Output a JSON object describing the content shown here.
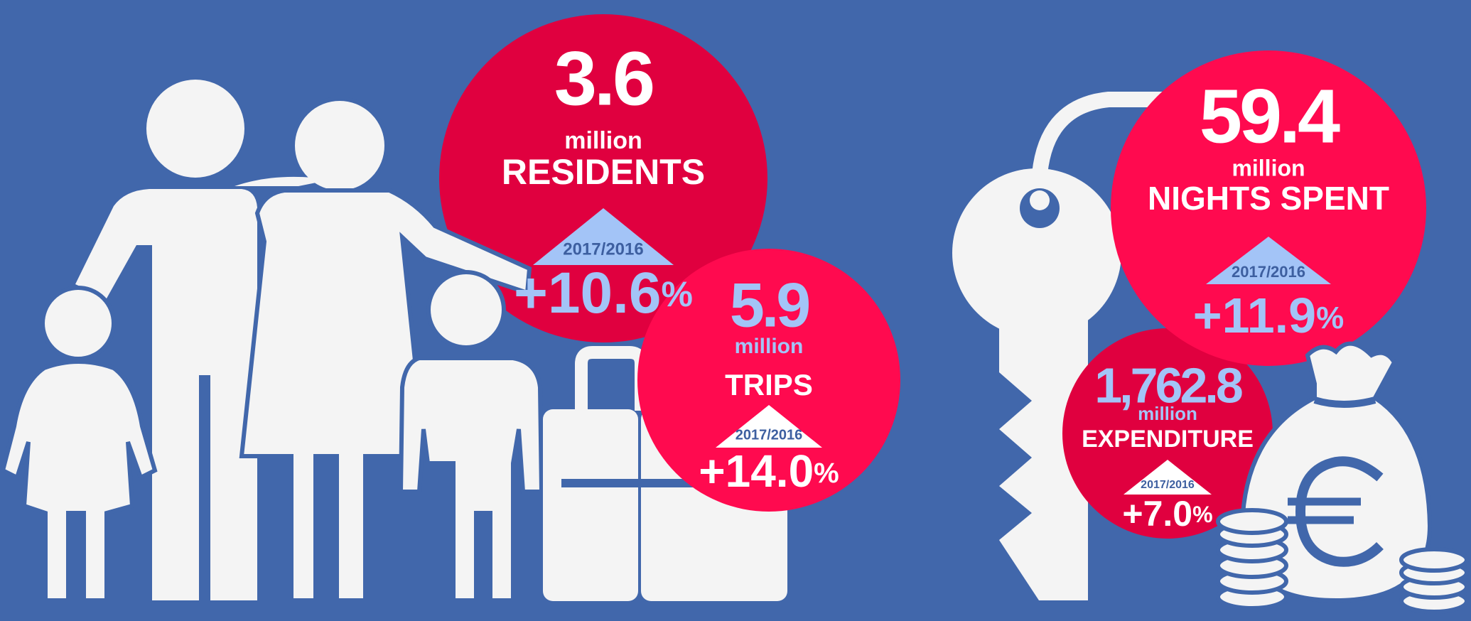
{
  "stats": [
    {
      "value": "3.6",
      "unit": "million",
      "label": "RESIDENTS",
      "period": "2017/2016",
      "change": "+10.6",
      "change_unit": "%"
    },
    {
      "value": "5.9",
      "unit": "million",
      "label": "TRIPS",
      "period": "2017/2016",
      "change": "+14.0",
      "change_unit": "%"
    },
    {
      "value": "59.4",
      "unit": "million",
      "label": "NIGHTS SPENT",
      "period": "2017/2016",
      "change": "+11.9",
      "change_unit": "%"
    },
    {
      "value": "1,762.8",
      "unit": "million",
      "label": "EXPENDITURE",
      "period": "2017/2016",
      "change": "+7.0",
      "change_unit": "%"
    }
  ]
}
